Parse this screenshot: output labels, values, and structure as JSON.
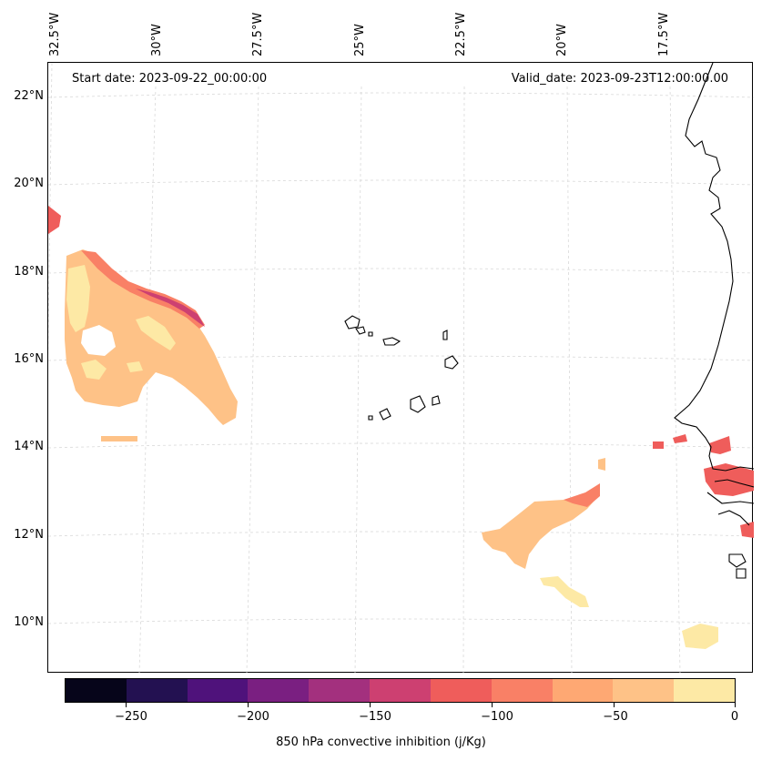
{
  "header": {
    "start_date": "Start date: 2023-09-22_00:00:00",
    "valid_date": "Valid_date: 2023-09-23T12:00:00.00"
  },
  "map": {
    "lon_labels": [
      "32.5°W",
      "30°W",
      "27.5°W",
      "25°W",
      "22.5°W",
      "20°W",
      "17.5°W"
    ],
    "lat_labels": [
      "22°N",
      "20°N",
      "18°N",
      "16°N",
      "14°N",
      "12°N",
      "10°N"
    ]
  },
  "colorbar": {
    "label": "850 hPa convective inhibition (j/Kg)",
    "ticks": [
      "−250",
      "−200",
      "−150",
      "−100",
      "−50",
      "0"
    ],
    "colors": [
      "#06051a",
      "#231151",
      "#4f127b",
      "#7a1f81",
      "#a3307e",
      "#cd4071",
      "#ef5d5b",
      "#f98066",
      "#fea873",
      "#fec287",
      "#fde9a5"
    ]
  }
}
